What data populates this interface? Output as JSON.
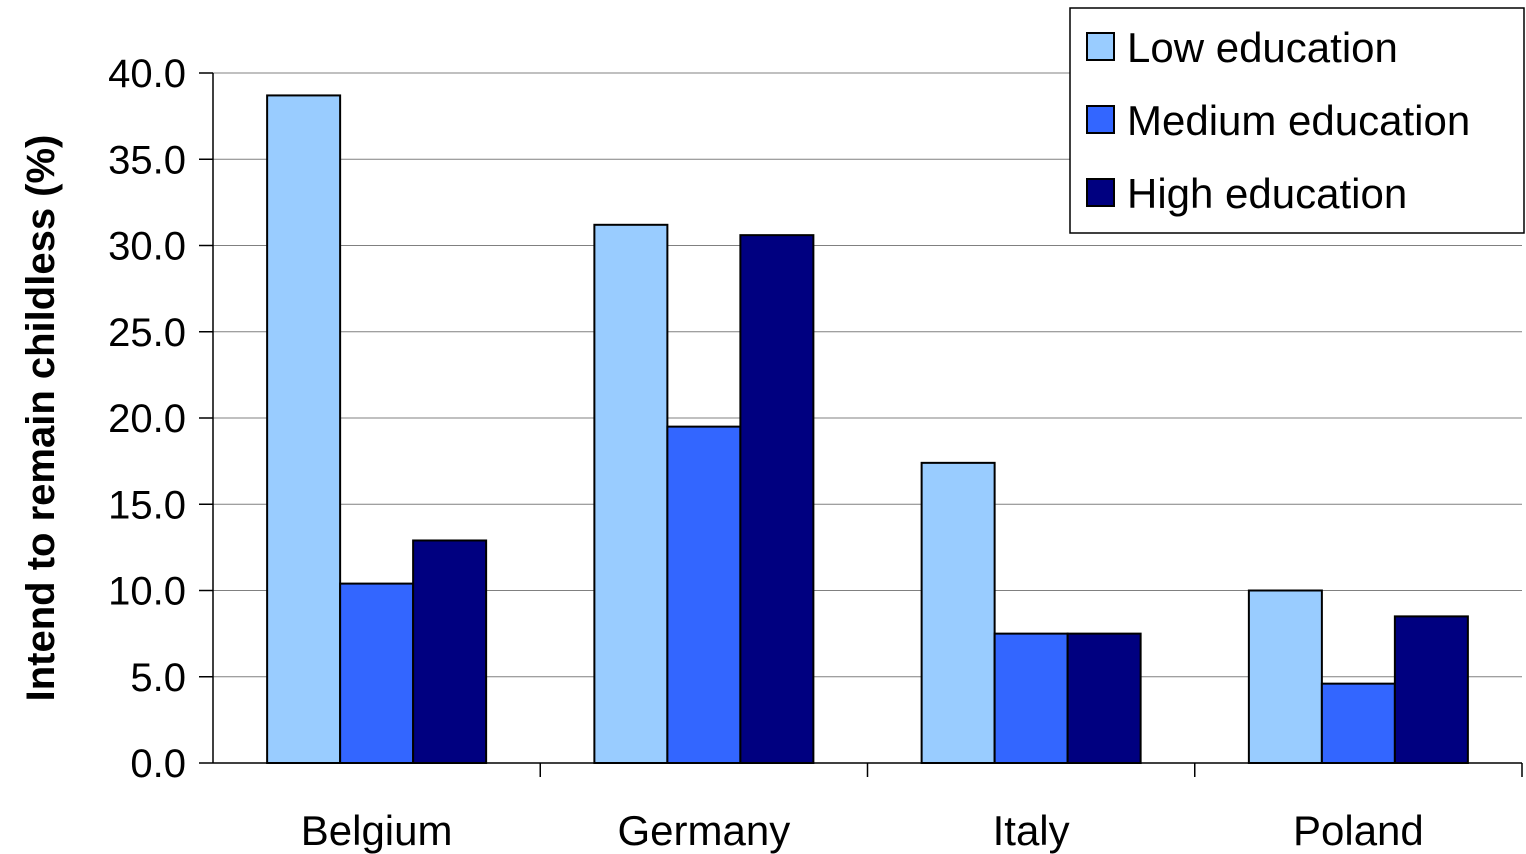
{
  "chart_data": {
    "type": "bar",
    "ylabel": "Intend to remain childless (%)",
    "xlabel": "",
    "ylim": [
      0,
      40
    ],
    "yticks": [
      "0.0",
      "5.0",
      "10.0",
      "15.0",
      "20.0",
      "25.0",
      "30.0",
      "35.0",
      "40.0"
    ],
    "grid": true,
    "legend_position": "top-right",
    "categories": [
      "Belgium",
      "Germany",
      "Italy",
      "Poland"
    ],
    "series": [
      {
        "name": "Low education",
        "color": "#99ccff",
        "values": [
          38.7,
          31.2,
          17.4,
          10.0
        ]
      },
      {
        "name": "Medium education",
        "color": "#3366ff",
        "values": [
          10.4,
          19.5,
          7.5,
          4.6
        ]
      },
      {
        "name": "High education",
        "color": "#000080",
        "values": [
          12.9,
          30.6,
          7.5,
          8.5
        ]
      }
    ]
  }
}
